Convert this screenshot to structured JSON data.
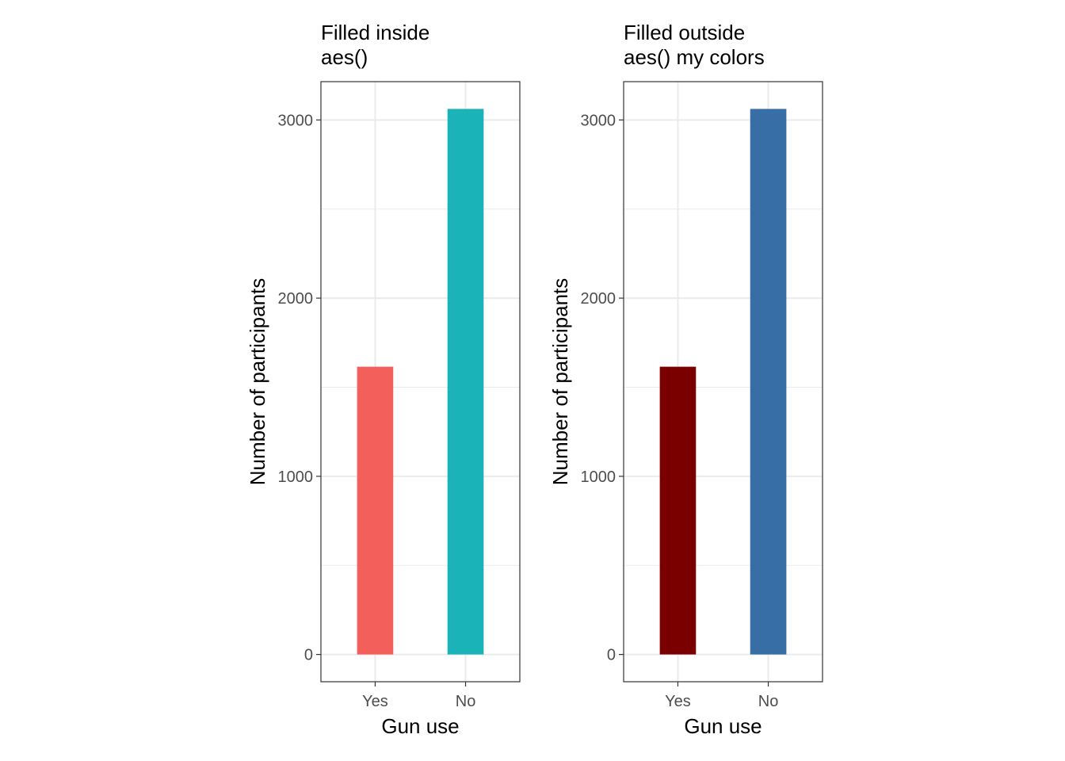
{
  "chart_data": [
    {
      "type": "bar",
      "title": [
        "Filled inside",
        "aes()"
      ],
      "xlabel": "Gun use",
      "ylabel": "Number of participants",
      "categories": [
        "Yes",
        "No"
      ],
      "values": [
        1615,
        3062
      ],
      "colors": [
        "#F8766D",
        "#00BFC4"
      ],
      "bar_colors_rendered": [
        "#F35F5B",
        "#19B3B8"
      ],
      "ylim": [
        -153,
        3215
      ],
      "yticks": [
        0,
        1000,
        2000,
        3000
      ],
      "grid": true,
      "legend": "none"
    },
    {
      "type": "bar",
      "title": [
        "Filled outside",
        "aes() my colors"
      ],
      "xlabel": "Gun use",
      "ylabel": "Number of participants",
      "categories": [
        "Yes",
        "No"
      ],
      "values": [
        1615,
        3062
      ],
      "colors": [
        "#7A0000",
        "#386EA6"
      ],
      "ylim": [
        -153,
        3215
      ],
      "yticks": [
        0,
        1000,
        2000,
        3000
      ],
      "grid": true,
      "legend": "none"
    }
  ]
}
